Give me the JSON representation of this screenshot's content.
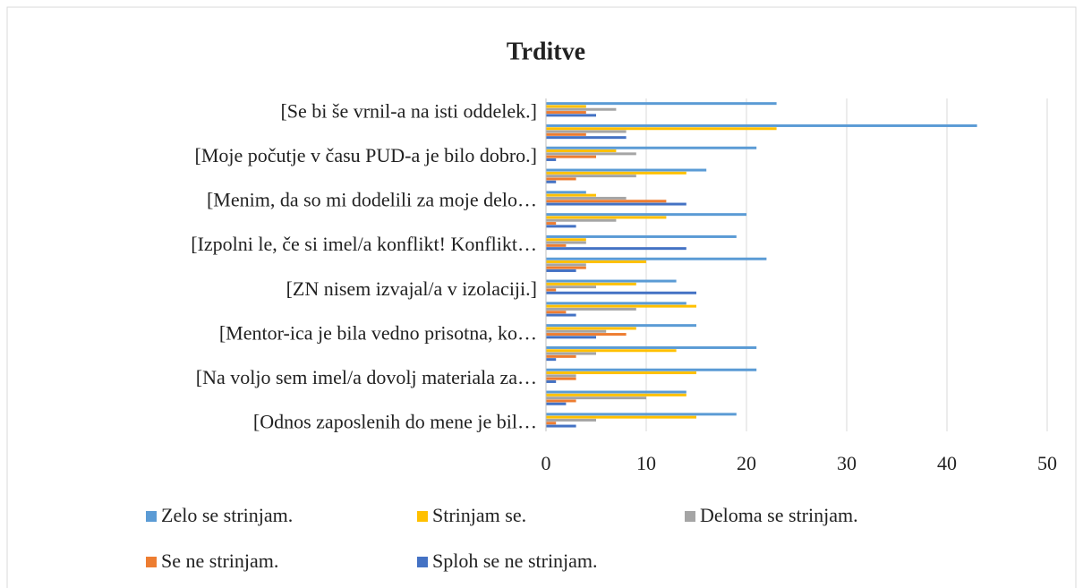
{
  "chart_data": {
    "type": "bar",
    "orientation": "horizontal",
    "title": "Trditve",
    "categories": [
      "[Se bi še vrnil-a na isti oddelek.]",
      null,
      "[Moje počutje v času PUD-a je bilo dobro.]",
      null,
      "[Menim, da so mi dodelili za moje delo…",
      null,
      "[Izpolni le, če si imel/a konflikt! Konflikt…",
      null,
      "[ZN nisem izvajal/a v izolaciji.]",
      null,
      "[Mentor-ica je bila vedno prisotna, ko…",
      null,
      "[Na voljo sem imel/a dovolj materiala za…",
      null,
      "[Odnos zaposlenih do mene je bil…"
    ],
    "series": [
      {
        "name": "Zelo se strinjam.",
        "color": "#5b9bd5",
        "values": [
          23,
          43,
          21,
          16,
          4,
          20,
          19,
          22,
          13,
          14,
          15,
          21,
          21,
          14,
          19
        ]
      },
      {
        "name": "Strinjam se.",
        "color": "#ffc000",
        "values": [
          4,
          23,
          7,
          14,
          5,
          12,
          4,
          10,
          9,
          15,
          9,
          13,
          15,
          14,
          15
        ]
      },
      {
        "name": "Deloma se strinjam.",
        "color": "#a5a5a5",
        "values": [
          7,
          8,
          9,
          9,
          8,
          7,
          4,
          4,
          5,
          9,
          6,
          5,
          3,
          10,
          5
        ]
      },
      {
        "name": "Se ne strinjam.",
        "color": "#ed7d31",
        "values": [
          4,
          4,
          5,
          3,
          12,
          1,
          2,
          4,
          1,
          2,
          8,
          3,
          3,
          3,
          1
        ]
      },
      {
        "name": "Sploh se ne strinjam.",
        "color": "#4472c4",
        "values": [
          5,
          8,
          1,
          1,
          14,
          3,
          14,
          3,
          15,
          3,
          5,
          1,
          1,
          2,
          3
        ]
      }
    ],
    "xlim": [
      0,
      50
    ],
    "xticks": [
      0,
      10,
      20,
      30,
      40,
      50
    ],
    "grid": true,
    "legend": "bottom"
  }
}
